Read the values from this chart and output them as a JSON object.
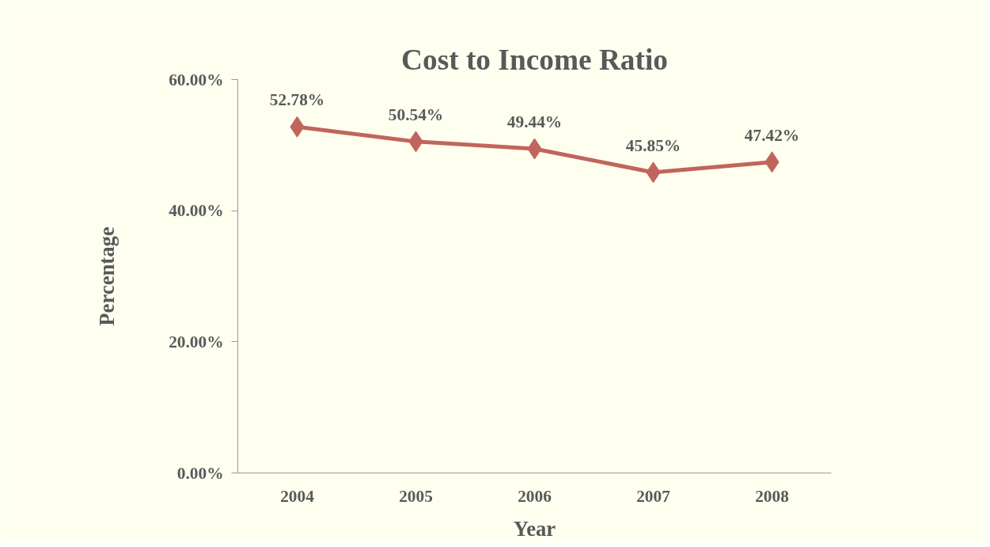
{
  "chart_data": {
    "type": "line",
    "title": "Cost to Income Ratio",
    "xlabel": "Year",
    "ylabel": "Percentage",
    "categories": [
      "2004",
      "2005",
      "2006",
      "2007",
      "2008"
    ],
    "series": [
      {
        "color": "#c0655d",
        "values": [
          52.78,
          50.54,
          49.44,
          45.85,
          47.42
        ],
        "value_labels": [
          "52.78%",
          "50.54%",
          "49.44%",
          "45.85%",
          "47.42%"
        ]
      }
    ],
    "ylim": [
      0,
      60
    ],
    "yticks": [
      {
        "value": 0,
        "label": "0.00%"
      },
      {
        "value": 20,
        "label": "20.00%"
      },
      {
        "value": 40,
        "label": "40.00%"
      },
      {
        "value": 60,
        "label": "60.00%"
      }
    ],
    "marker": "diamond",
    "line_style": "solid"
  }
}
